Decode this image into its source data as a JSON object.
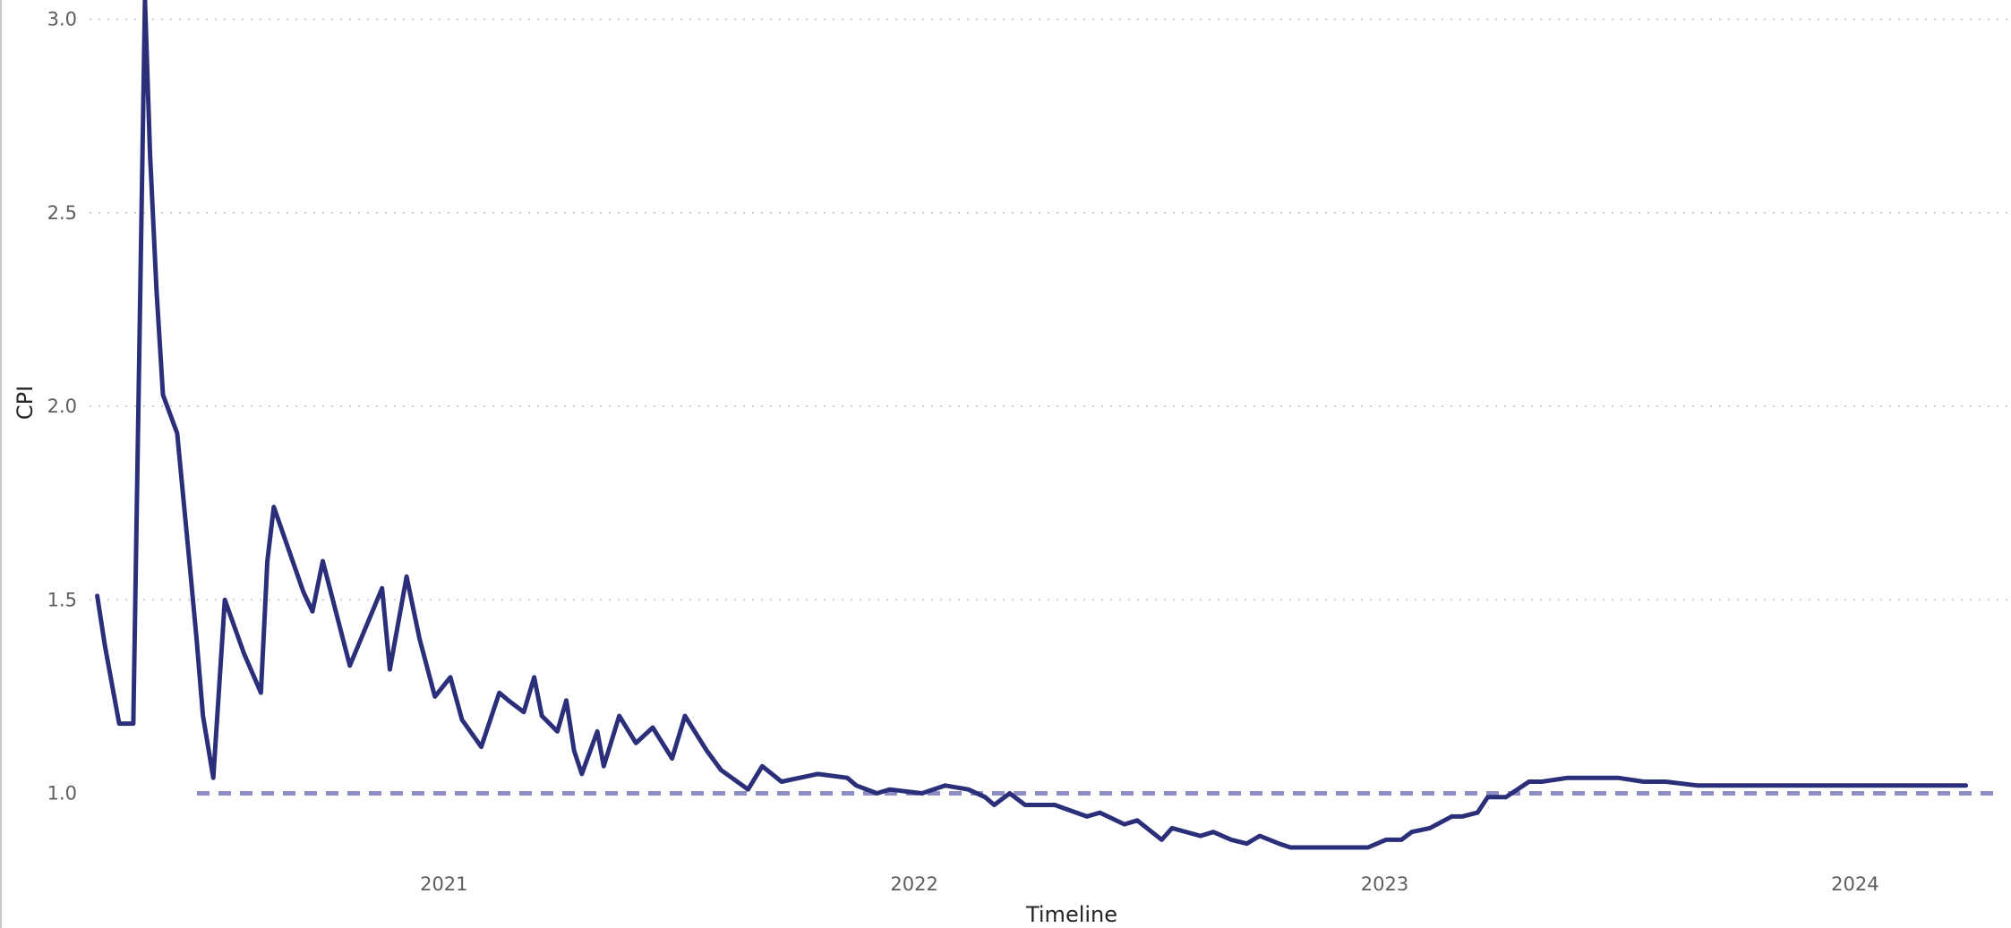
{
  "chart_data": {
    "type": "line",
    "title": "",
    "xlabel": "Timeline",
    "ylabel": "CPI",
    "x_tick_labels": [
      "2021",
      "2022",
      "2023",
      "2024"
    ],
    "y_tick_labels": [
      "1.0",
      "1.5",
      "2.0",
      "2.5",
      "3.0"
    ],
    "y_ticks": [
      1.0,
      1.5,
      2.0,
      2.5,
      3.0
    ],
    "ylim": [
      0.83,
      3.05
    ],
    "xlim": [
      "2020-04-01",
      "2024-05-01"
    ],
    "grid": true,
    "legend": "none",
    "reference_line": {
      "y": 1.0,
      "style": "dashed"
    },
    "colors": {
      "line": "#2b2f7a",
      "reference": "#8d8fc4",
      "grid": "#d0d0d0"
    },
    "series": [
      {
        "x": [
          "2020-04-07",
          "2020-04-13",
          "2020-04-24",
          "2020-05-05",
          "2020-05-14",
          "2020-05-18",
          "2020-05-23",
          "2020-05-28",
          "2020-06-08",
          "2020-06-18",
          "2020-06-23",
          "2020-06-28",
          "2020-07-06",
          "2020-07-15",
          "2020-07-30",
          "2020-08-12",
          "2020-08-17",
          "2020-08-22",
          "2020-09-14",
          "2020-09-21",
          "2020-09-29",
          "2020-10-20",
          "2020-11-14",
          "2020-11-20",
          "2020-12-03",
          "2020-12-13",
          "2020-12-25",
          "2021-01-06",
          "2021-01-15",
          "2021-01-30",
          "2021-02-13",
          "2021-02-20",
          "2021-03-04",
          "2021-03-12",
          "2021-03-18",
          "2021-03-30",
          "2021-04-06",
          "2021-04-12",
          "2021-04-18",
          "2021-04-30",
          "2021-05-05",
          "2021-05-17",
          "2021-05-30",
          "2021-06-12",
          "2021-06-27",
          "2021-07-07",
          "2021-07-24",
          "2021-08-04",
          "2021-08-25",
          "2021-09-05",
          "2021-09-20",
          "2021-10-18",
          "2021-11-10",
          "2021-11-17",
          "2021-12-03",
          "2021-12-13",
          "2022-01-07",
          "2022-01-25",
          "2022-02-12",
          "2022-02-25",
          "2022-03-04",
          "2022-03-16",
          "2022-03-28",
          "2022-04-20",
          "2022-05-15",
          "2022-05-25",
          "2022-06-13",
          "2022-06-23",
          "2022-07-12",
          "2022-07-20",
          "2022-08-11",
          "2022-08-21",
          "2022-09-04",
          "2022-09-16",
          "2022-09-26",
          "2022-10-11",
          "2022-10-20",
          "2022-11-04",
          "2022-11-21",
          "2022-12-01",
          "2022-12-19",
          "2023-01-02",
          "2023-01-14",
          "2023-01-22",
          "2023-02-05",
          "2023-02-22",
          "2023-03-02",
          "2023-03-14",
          "2023-03-22",
          "2023-04-05",
          "2023-04-23",
          "2023-05-03",
          "2023-05-23",
          "2023-06-01",
          "2023-06-19",
          "2023-07-01",
          "2023-07-21",
          "2023-08-07",
          "2023-09-01",
          "2023-09-17",
          "2023-10-14",
          "2023-11-13",
          "2024-03-27"
        ],
        "y": [
          1.51,
          1.38,
          1.18,
          1.18,
          3.05,
          2.65,
          2.3,
          2.03,
          1.93,
          1.58,
          1.4,
          1.2,
          1.04,
          1.5,
          1.36,
          1.26,
          1.6,
          1.74,
          1.52,
          1.47,
          1.6,
          1.33,
          1.53,
          1.32,
          1.56,
          1.4,
          1.25,
          1.3,
          1.19,
          1.12,
          1.26,
          1.24,
          1.21,
          1.3,
          1.2,
          1.16,
          1.24,
          1.11,
          1.05,
          1.16,
          1.07,
          1.2,
          1.13,
          1.17,
          1.09,
          1.2,
          1.11,
          1.06,
          1.01,
          1.07,
          1.03,
          1.05,
          1.04,
          1.02,
          1.0,
          1.01,
          1.0,
          1.02,
          1.01,
          0.99,
          0.97,
          1.0,
          0.97,
          0.97,
          0.94,
          0.95,
          0.92,
          0.93,
          0.88,
          0.91,
          0.89,
          0.9,
          0.88,
          0.87,
          0.89,
          0.87,
          0.86,
          0.86,
          0.86,
          0.86,
          0.86,
          0.88,
          0.88,
          0.9,
          0.91,
          0.94,
          0.94,
          0.95,
          0.99,
          0.99,
          1.03,
          1.03,
          1.04,
          1.04,
          1.04,
          1.04,
          1.03,
          1.03,
          1.02,
          1.02,
          1.02,
          1.02,
          1.02
        ]
      }
    ]
  }
}
